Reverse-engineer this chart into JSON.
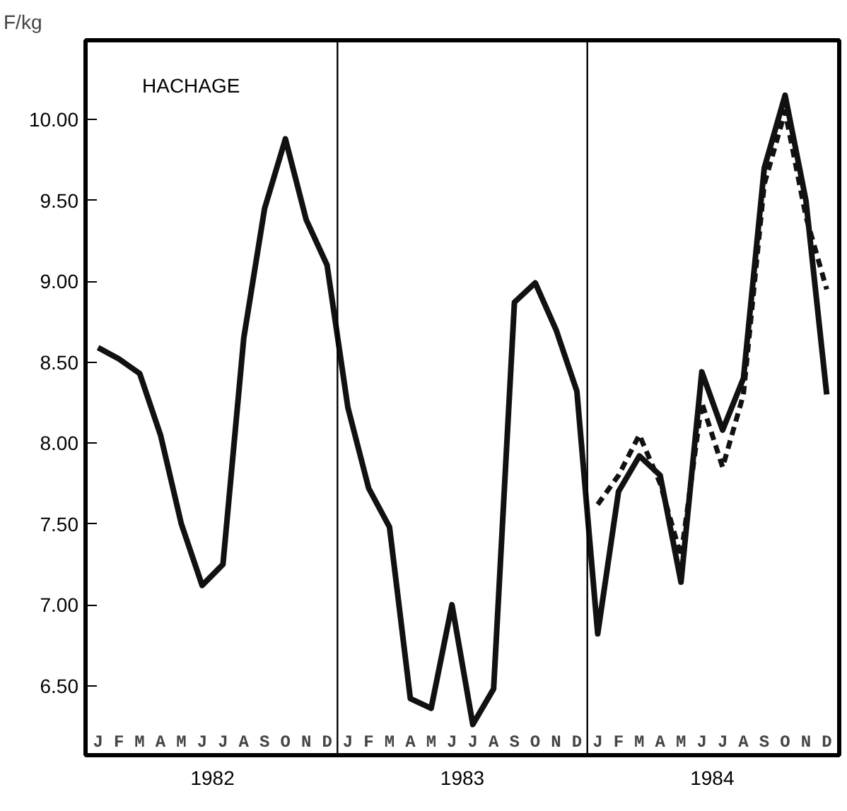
{
  "chart_data": {
    "type": "line",
    "title": "HACHAGE",
    "ylabel": "F/kg",
    "categories": [
      "J",
      "F",
      "M",
      "A",
      "M",
      "J",
      "J",
      "A",
      "S",
      "O",
      "N",
      "D",
      "J",
      "F",
      "M",
      "A",
      "M",
      "J",
      "J",
      "A",
      "S",
      "O",
      "N",
      "D",
      "J",
      "F",
      "M",
      "A",
      "M",
      "J",
      "J",
      "A",
      "S",
      "O",
      "N",
      "D"
    ],
    "series": [
      {
        "color": "#111111",
        "line_style": "solid",
        "values": [
          8.59,
          8.52,
          8.43,
          8.05,
          7.5,
          7.12,
          7.25,
          8.65,
          9.45,
          9.88,
          9.38,
          9.1,
          8.22,
          7.72,
          7.48,
          6.42,
          6.36,
          7.0,
          6.26,
          6.48,
          8.87,
          8.99,
          8.7,
          8.32,
          6.82,
          7.7,
          7.92,
          7.8,
          7.14,
          8.44,
          8.08,
          8.4,
          9.7,
          10.15,
          9.5,
          8.3
        ]
      },
      {
        "color": "#111111",
        "line_style": "dashed",
        "values": [
          null,
          null,
          null,
          null,
          null,
          null,
          null,
          null,
          null,
          null,
          null,
          null,
          null,
          null,
          null,
          null,
          null,
          null,
          null,
          null,
          null,
          null,
          null,
          null,
          7.62,
          7.8,
          8.05,
          7.75,
          7.3,
          8.25,
          7.85,
          8.3,
          9.6,
          10.05,
          9.4,
          8.95
        ]
      }
    ],
    "annotations": [
      "1982",
      "1983",
      "1984"
    ],
    "ylim": [
      6.07,
      10.49
    ],
    "yticks": [
      {
        "value": 6.5,
        "label": "6.50"
      },
      {
        "value": 7.0,
        "label": "7.00"
      },
      {
        "value": 7.5,
        "label": "7.50"
      },
      {
        "value": 8.0,
        "label": "8.00"
      },
      {
        "value": 8.5,
        "label": "8.50"
      },
      {
        "value": 9.0,
        "label": "9.00"
      },
      {
        "value": 9.5,
        "label": "9.50"
      },
      {
        "value": 10.0,
        "label": "10.00"
      }
    ],
    "grid": false
  }
}
